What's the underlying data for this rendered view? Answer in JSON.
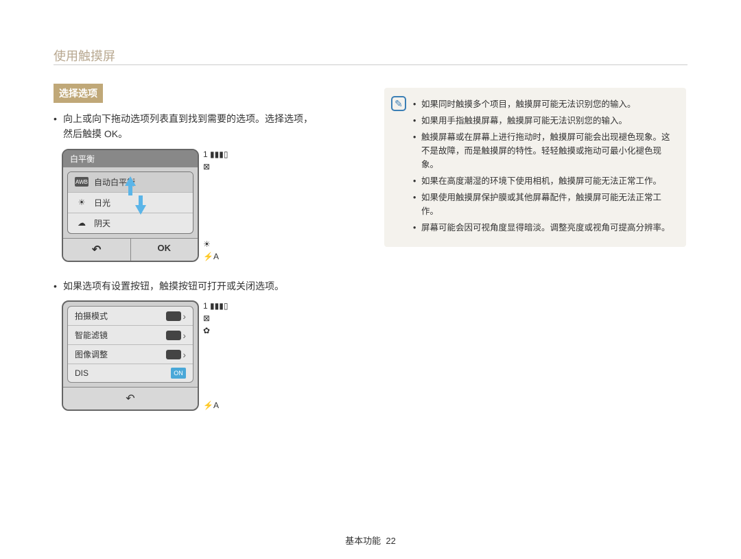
{
  "page": {
    "title": "使用触摸屏",
    "footer_label": "基本功能",
    "footer_num": "22"
  },
  "section": {
    "heading": "选择选项"
  },
  "bullet1": {
    "line1": "向上或向下拖动选项列表直到找到需要的选项。选择选项，",
    "line2": "然后触摸 OK。"
  },
  "bullet2": "如果选项有设置按钮，触摸按钮可打开或关闭选项。",
  "screen1": {
    "header": "白平衡",
    "options": [
      {
        "icon_text": "AWB",
        "label": "自动白平衡",
        "selected": true
      },
      {
        "icon_text": "☀",
        "label": "日光",
        "selected": false
      },
      {
        "icon_text": "☁",
        "label": "阴天",
        "selected": false
      }
    ],
    "back": "↶",
    "ok": "OK"
  },
  "screen2": {
    "rows": [
      {
        "label": "拍摄模式",
        "type": "pill"
      },
      {
        "label": "智能滤镜",
        "type": "pill"
      },
      {
        "label": "图像调整",
        "type": "pill"
      },
      {
        "label": "DIS",
        "type": "on",
        "on_text": "ON"
      }
    ],
    "back": "↶"
  },
  "side_strip": {
    "top": [
      "1",
      "▮▮▮▯",
      "⊠"
    ],
    "bottom": [
      "☀",
      "⚡A"
    ],
    "screen2_top": [
      "1",
      "▮▮▮▯",
      "⊠",
      "✿"
    ],
    "screen2_bottom": [
      "⚡A"
    ]
  },
  "notes": [
    "如果同时触摸多个项目，触摸屏可能无法识别您的输入。",
    "如果用手指触摸屏幕，触摸屏可能无法识别您的输入。",
    "触摸屏幕或在屏幕上进行拖动时，触摸屏可能会出现褪色现象。这不是故障，而是触摸屏的特性。轻轻触摸或拖动可最小化褪色现象。",
    "如果在高度潮湿的环境下使用相机，触摸屏可能无法正常工作。",
    "如果使用触摸屏保护膜或其他屏幕配件，触摸屏可能无法正常工作。",
    "屏幕可能会因可视角度显得暗淡。调整亮度或视角可提高分辨率。"
  ]
}
